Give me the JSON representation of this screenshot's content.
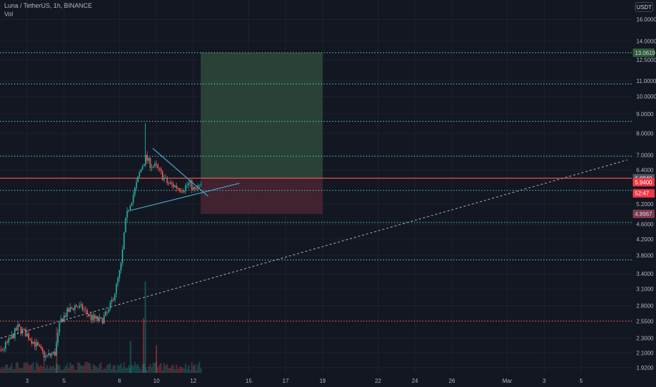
{
  "header": {
    "symbol_line": "Luna / TetherUS, 1h, BINANCE",
    "volume_label": "Vol"
  },
  "currency_button": "USDT",
  "colors": {
    "background": "#131722",
    "grid": "#1e222d",
    "up": "#26a69a",
    "down": "#ef5350",
    "teal_level": "#4fb3b0",
    "red_level": "#f0524f",
    "blue_line": "#4aa3c8",
    "profit_zone": "#2f4a3a",
    "loss_zone": "#4a2532",
    "text": "#b2b5be"
  },
  "chart_data": {
    "type": "candlestick",
    "scale": "log",
    "x_unit": "day",
    "x_ticks": [
      {
        "day": 3,
        "label": "3"
      },
      {
        "day": 5,
        "label": "5"
      },
      {
        "day": 8,
        "label": "8"
      },
      {
        "day": 10,
        "label": "10"
      },
      {
        "day": 12,
        "label": "12"
      },
      {
        "day": 15,
        "label": "15"
      },
      {
        "day": 17,
        "label": "17"
      },
      {
        "day": 19,
        "label": "19"
      },
      {
        "day": 22,
        "label": "22"
      },
      {
        "day": 24,
        "label": "24"
      },
      {
        "day": 26,
        "label": "26"
      },
      {
        "day": 29,
        "label": "Mar"
      },
      {
        "day": 31,
        "label": "3"
      },
      {
        "day": 33,
        "label": "5"
      }
    ],
    "y_ticks": [
      "16.0000",
      "14.0000",
      "12.5000",
      "11.0000",
      "10.0000",
      "9.0000",
      "8.0000",
      "7.0000",
      "6.4000",
      "5.2000",
      "4.6000",
      "4.2000",
      "3.8000",
      "3.4000",
      "3.1000",
      "2.8000",
      "2.5500",
      "2.3000",
      "2.1000",
      "1.9200"
    ],
    "horizontal_levels": [
      {
        "price": 13.0619,
        "style": "dotted",
        "color": "teal"
      },
      {
        "price": 10.8,
        "style": "dotted",
        "color": "teal"
      },
      {
        "price": 8.6,
        "style": "dotted",
        "color": "teal"
      },
      {
        "price": 6.95,
        "style": "dotted",
        "color": "teal"
      },
      {
        "price": 6.084,
        "style": "solid",
        "color": "red"
      },
      {
        "price": 5.65,
        "style": "dotted",
        "color": "teal"
      },
      {
        "price": 4.65,
        "style": "dotted",
        "color": "teal"
      },
      {
        "price": 3.7,
        "style": "dotted",
        "color": "teal"
      },
      {
        "price": 2.55,
        "style": "dotted",
        "color": "red"
      }
    ],
    "trendlines": [
      {
        "from": [
          9.8,
          7.3
        ],
        "to": [
          12.8,
          5.45
        ],
        "style": "solid"
      },
      {
        "from": [
          8.6,
          5.0
        ],
        "to": [
          14.5,
          5.9
        ],
        "style": "solid"
      },
      {
        "from": [
          0.9,
          2.25
        ],
        "to": [
          35.5,
          6.8
        ],
        "style": "dashed"
      }
    ],
    "position": {
      "start_day": 12.4,
      "end_day": 19.0,
      "entry": 6.084,
      "target": 13.0619,
      "stop": 4.8967
    },
    "price_labels": [
      {
        "text": "13.0619",
        "price": 13.0619,
        "bg": "#2e5d3a",
        "fg": "#d1d4dc"
      },
      {
        "text": "6.0840",
        "price": 6.084,
        "bg": "#50535e",
        "fg": "#ffffff"
      },
      {
        "text": "5.9400",
        "price": 5.94,
        "bg": "#f23645",
        "fg": "#ffffff"
      },
      {
        "text": "52:47",
        "price": 5.55,
        "bg": "#f23645",
        "fg": "#ffffff"
      },
      {
        "text": "4.8967",
        "price": 4.8967,
        "bg": "#7d3a4a",
        "fg": "#d1d4dc"
      }
    ],
    "candle_path": [
      [
        0.5,
        2.05
      ],
      [
        1.0,
        2.1
      ],
      [
        1.5,
        2.1
      ],
      [
        2.0,
        2.25
      ],
      [
        2.5,
        2.45
      ],
      [
        3.0,
        2.35
      ],
      [
        3.5,
        2.2
      ],
      [
        4.0,
        2.05
      ],
      [
        4.5,
        2.1
      ],
      [
        4.8,
        2.55
      ],
      [
        5.2,
        2.7
      ],
      [
        5.6,
        2.8
      ],
      [
        6.0,
        2.75
      ],
      [
        6.5,
        2.6
      ],
      [
        7.0,
        2.55
      ],
      [
        7.4,
        2.7
      ],
      [
        7.8,
        3.1
      ],
      [
        8.1,
        3.6
      ],
      [
        8.3,
        4.6
      ],
      [
        8.5,
        5.1
      ],
      [
        8.8,
        5.6
      ],
      [
        9.1,
        6.3
      ],
      [
        9.4,
        6.9
      ],
      [
        9.7,
        6.6
      ],
      [
        10.0,
        6.5
      ],
      [
        10.3,
        6.2
      ],
      [
        10.6,
        5.9
      ],
      [
        11.0,
        5.8
      ],
      [
        11.4,
        5.7
      ],
      [
        11.8,
        5.9
      ],
      [
        12.1,
        5.6
      ],
      [
        12.3,
        5.8
      ],
      [
        12.5,
        5.75
      ]
    ],
    "volume_spikes": [
      {
        "day": 4.6,
        "v": 0.5
      },
      {
        "day": 8.6,
        "v": 0.35
      },
      {
        "day": 9.3,
        "v": 0.6
      },
      {
        "day": 9.4,
        "v": 1.0
      },
      {
        "day": 10.0,
        "v": 0.3
      }
    ]
  }
}
